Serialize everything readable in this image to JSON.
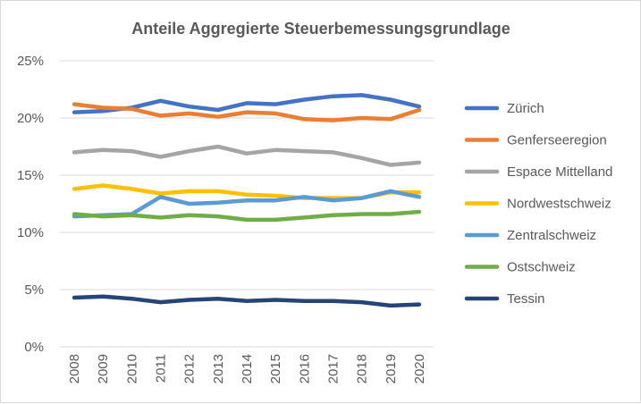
{
  "chart_data": {
    "type": "line",
    "title": "Anteile Aggregierte Steuerbemessungsgrundlage",
    "xlabel": "",
    "ylabel": "",
    "x": [
      "2008",
      "2009",
      "2010",
      "2011",
      "2012",
      "2013",
      "2014",
      "2015",
      "2016",
      "2017",
      "2018",
      "2019",
      "2020"
    ],
    "ylim": [
      0,
      25
    ],
    "yticks": [
      0,
      5,
      10,
      15,
      20,
      25
    ],
    "ytick_labels": [
      "0%",
      "5%",
      "10%",
      "15%",
      "20%",
      "25%"
    ],
    "grid": "horizontal",
    "legend_position": "right",
    "series": [
      {
        "name": "Zürich",
        "color": "#4472c4",
        "values": [
          20.5,
          20.6,
          20.9,
          21.5,
          21.0,
          20.7,
          21.3,
          21.2,
          21.6,
          21.9,
          22.0,
          21.6,
          21.0
        ]
      },
      {
        "name": "Genferseeregion",
        "color": "#ed7d31",
        "values": [
          21.2,
          20.9,
          20.8,
          20.2,
          20.4,
          20.1,
          20.5,
          20.4,
          19.9,
          19.8,
          20.0,
          19.9,
          20.7
        ]
      },
      {
        "name": "Espace Mittelland",
        "color": "#a5a5a5",
        "values": [
          17.0,
          17.2,
          17.1,
          16.6,
          17.1,
          17.5,
          16.9,
          17.2,
          17.1,
          17.0,
          16.5,
          15.9,
          16.1
        ]
      },
      {
        "name": "Nordwestschweiz",
        "color": "#ffc000",
        "values": [
          13.8,
          14.1,
          13.8,
          13.4,
          13.6,
          13.6,
          13.3,
          13.2,
          13.0,
          13.0,
          13.0,
          13.5,
          13.5
        ]
      },
      {
        "name": "Zentralschweiz",
        "color": "#5b9bd5",
        "values": [
          11.4,
          11.5,
          11.6,
          13.1,
          12.5,
          12.6,
          12.8,
          12.8,
          13.1,
          12.8,
          13.0,
          13.6,
          13.1
        ]
      },
      {
        "name": "Ostschweiz",
        "color": "#70ad47",
        "values": [
          11.6,
          11.4,
          11.5,
          11.3,
          11.5,
          11.4,
          11.1,
          11.1,
          11.3,
          11.5,
          11.6,
          11.6,
          11.8
        ]
      },
      {
        "name": "Tessin",
        "color": "#264478",
        "values": [
          4.3,
          4.4,
          4.2,
          3.9,
          4.1,
          4.2,
          4.0,
          4.1,
          4.0,
          4.0,
          3.9,
          3.6,
          3.7
        ]
      }
    ]
  }
}
